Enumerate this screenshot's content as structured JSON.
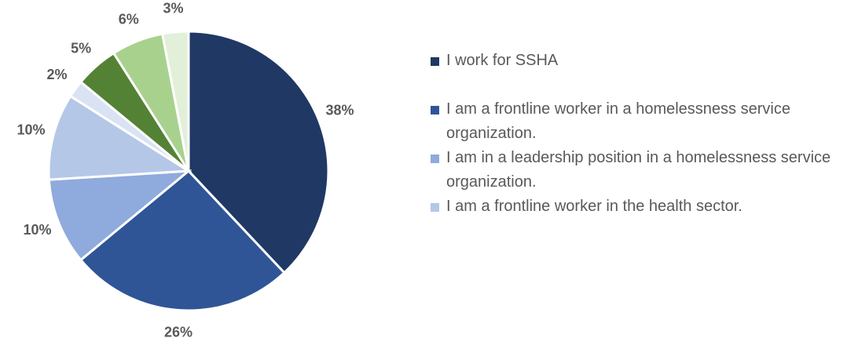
{
  "chart_data": {
    "type": "pie",
    "categories": [
      "I work for SSHA",
      "I am a frontline worker in a homelessness service organization.",
      "I am in a leadership position in a homelessness service organization.",
      "I am a frontline worker in the health sector.",
      null,
      null,
      null,
      null
    ],
    "values": [
      38,
      26,
      10,
      10,
      2,
      5,
      6,
      3
    ],
    "value_labels": [
      "38%",
      "26%",
      "10%",
      "10%",
      "2%",
      "5%",
      "6%",
      "3%"
    ],
    "colors": [
      "#203864",
      "#2f5597",
      "#8faadc",
      "#b4c7e7",
      "#dae3f3",
      "#548235",
      "#a9d18e",
      "#e2f0d9"
    ],
    "legend": "right"
  }
}
